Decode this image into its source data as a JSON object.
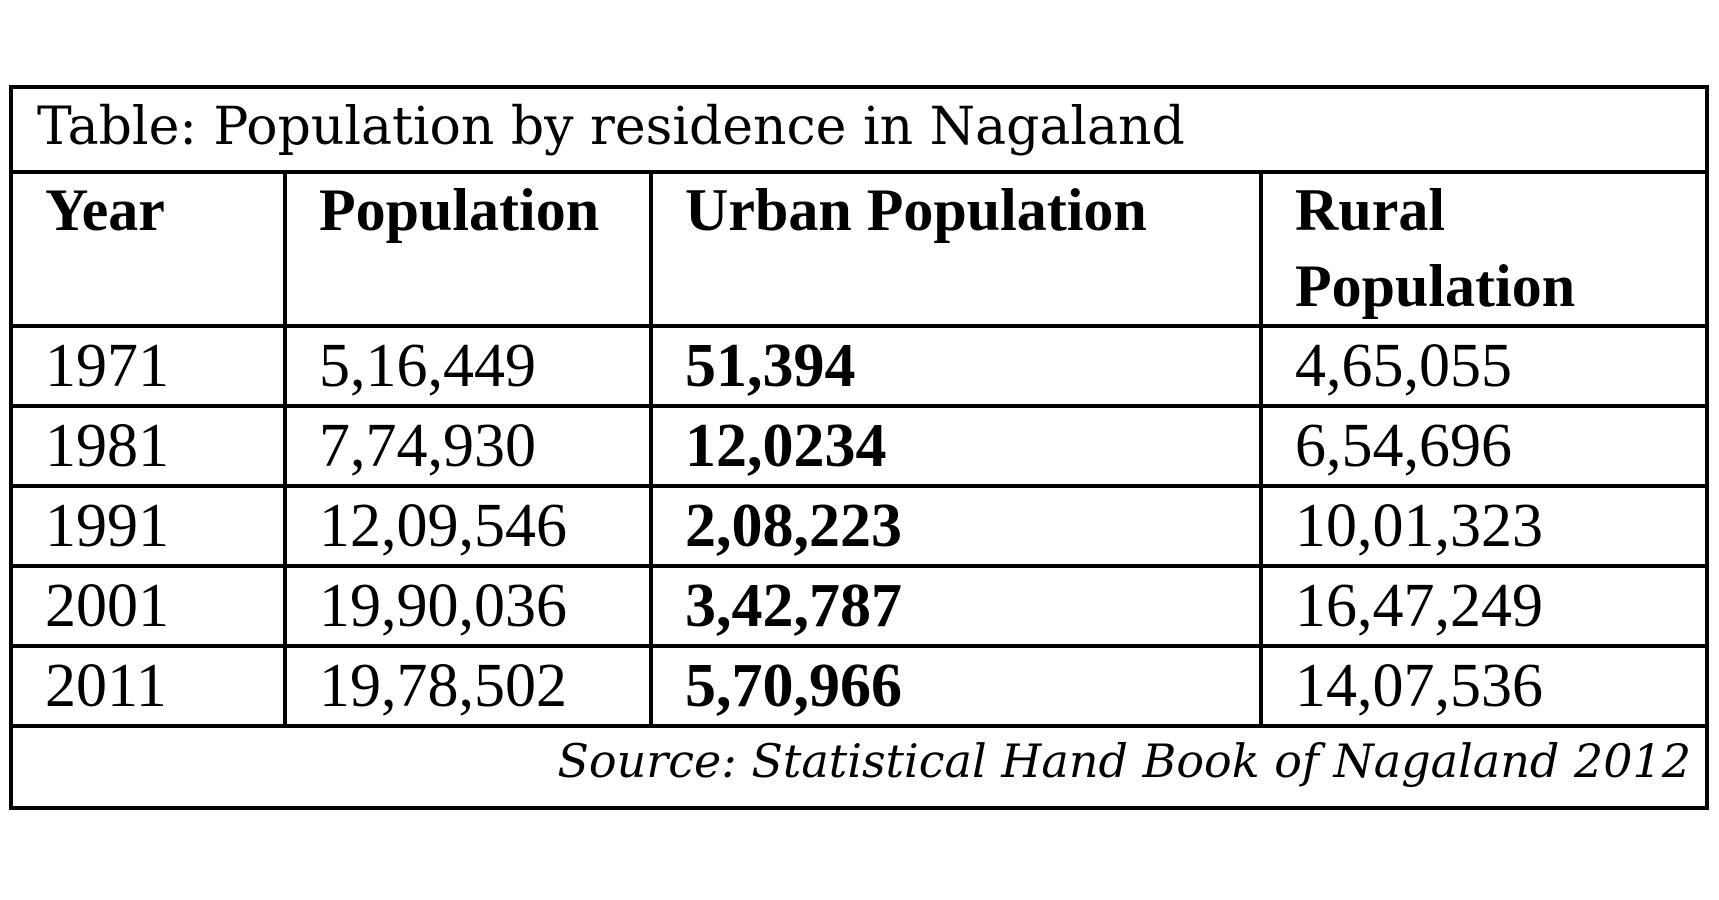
{
  "table": {
    "title": "Table: Population by residence in Nagaland",
    "headers": [
      "Year",
      "Population",
      "Urban Population",
      "Rural\nPopulation"
    ],
    "rows": [
      [
        "1971",
        "5,16,449",
        "51,394",
        "4,65,055"
      ],
      [
        "1981",
        "7,74,930",
        "12,0234",
        "6,54,696"
      ],
      [
        "1991",
        "12,09,546",
        "2,08,223",
        "10,01,323"
      ],
      [
        "2001",
        "19,90,036",
        "3,42,787",
        "16,47,249"
      ],
      [
        "2011",
        "19,78,502",
        "5,70,966",
        "14,07,536"
      ]
    ],
    "source": "Source: Statistical Hand Book of Nagaland 2012"
  }
}
